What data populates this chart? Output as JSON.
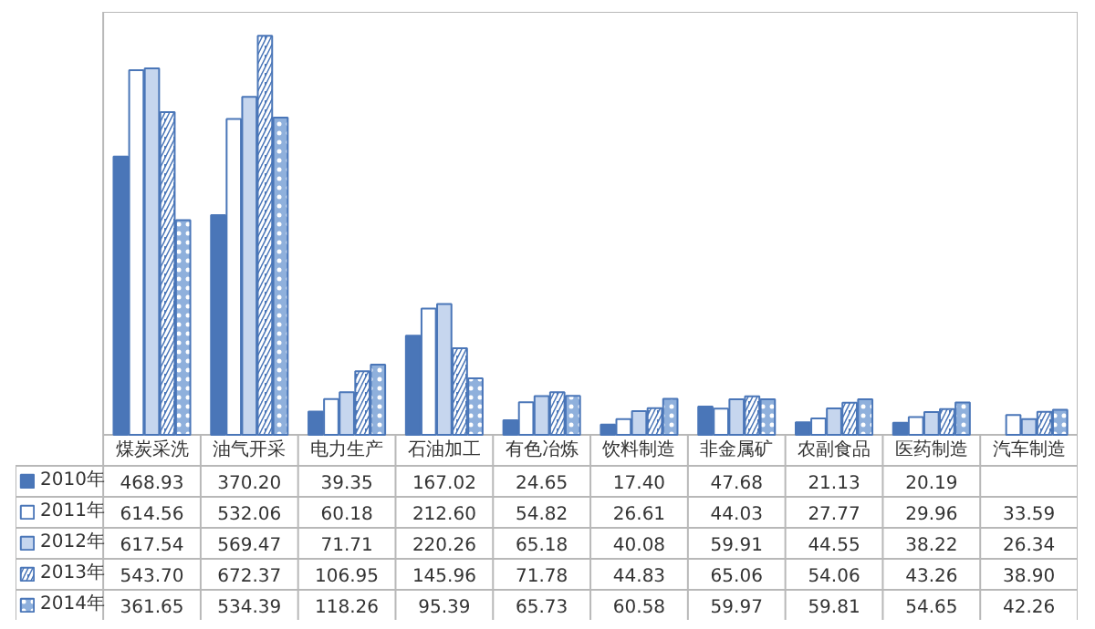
{
  "chart_data": {
    "type": "bar",
    "categories": [
      "煤炭采洗",
      "油气开采",
      "电力生产",
      "石油加工",
      "有色冶炼",
      "饮料制造",
      "非金属矿",
      "农副食品",
      "医药制造",
      "汽车制造"
    ],
    "series": [
      {
        "name": "2010年",
        "color": "#4a76b8",
        "values": [
          468.93,
          370.2,
          39.35,
          167.02,
          24.65,
          17.4,
          47.68,
          21.13,
          20.19,
          null
        ],
        "value_labels": [
          "468.93",
          "370.20",
          "39.35",
          "167.02",
          "24.65",
          "17.40",
          "47.68",
          "21.13",
          "20.19",
          null
        ]
      },
      {
        "name": "2011年",
        "color": "#ffffff",
        "values": [
          614.56,
          532.06,
          60.18,
          212.6,
          54.82,
          26.61,
          44.03,
          27.77,
          29.96,
          33.59
        ],
        "value_labels": [
          "614.56",
          "532.06",
          "60.18",
          "212.60",
          "54.82",
          "26.61",
          "44.03",
          "27.77",
          "29.96",
          "33.59"
        ]
      },
      {
        "name": "2012年",
        "color": "#c6d6ee",
        "values": [
          617.54,
          569.47,
          71.71,
          220.26,
          65.18,
          40.08,
          59.91,
          44.55,
          38.22,
          26.34
        ],
        "value_labels": [
          "617.54",
          "569.47",
          "71.71",
          "220.26",
          "65.18",
          "40.08",
          "59.91",
          "44.55",
          "38.22",
          "26.34"
        ]
      },
      {
        "name": "2013年",
        "color": "#4a76b8",
        "values": [
          543.7,
          672.37,
          106.95,
          145.96,
          71.78,
          44.83,
          65.06,
          54.06,
          43.26,
          38.9
        ],
        "value_labels": [
          "543.70",
          "672.37",
          "106.95",
          "145.96",
          "71.78",
          "44.83",
          "65.06",
          "54.06",
          "43.26",
          "38.90"
        ]
      },
      {
        "name": "2014年",
        "color": "#8fb0dc",
        "values": [
          361.65,
          534.39,
          118.26,
          95.39,
          65.73,
          60.58,
          59.97,
          59.81,
          54.65,
          42.26
        ],
        "value_labels": [
          "361.65",
          "534.39",
          "118.26",
          "95.39",
          "65.73",
          "60.58",
          "59.97",
          "59.81",
          "54.65",
          "42.26"
        ]
      }
    ],
    "legend": "bottom left",
    "data_labels": true,
    "grid": false
  }
}
